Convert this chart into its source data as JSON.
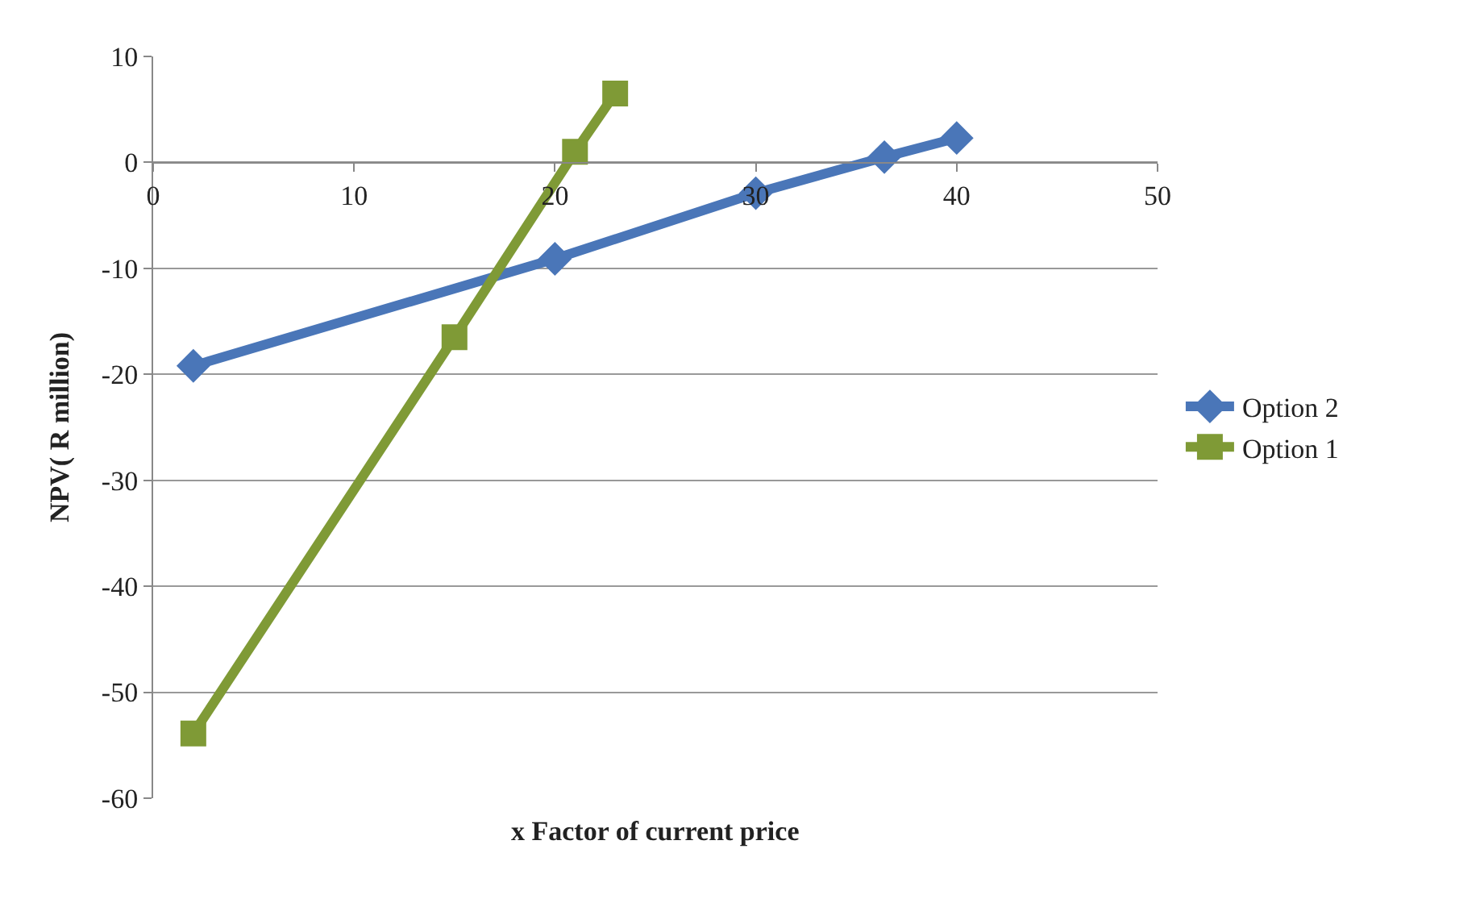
{
  "chart_data": {
    "type": "line",
    "xlabel": "x Factor of current price",
    "ylabel": "NPV( R million)",
    "xlim": [
      0,
      50
    ],
    "xticks": [
      0,
      10,
      20,
      30,
      40,
      50
    ],
    "ylim": [
      -60,
      10
    ],
    "yticks": [
      -60,
      -50,
      -40,
      -30,
      -20,
      -10,
      0,
      10
    ],
    "grid": "y",
    "legend": "right",
    "line_style": "solid",
    "series": [
      {
        "name": "Option 2",
        "color": "#4a76b8",
        "marker": "diamond",
        "x": [
          2,
          20,
          30,
          36.4,
          40
        ],
        "values": [
          -19.2,
          -9.1,
          -2.9,
          0.5,
          2.3
        ]
      },
      {
        "name": "Option 1",
        "color": "#7f9a36",
        "marker": "square",
        "x": [
          2,
          15,
          21,
          23
        ],
        "values": [
          -53.9,
          -16.5,
          1,
          6.5
        ]
      }
    ]
  }
}
